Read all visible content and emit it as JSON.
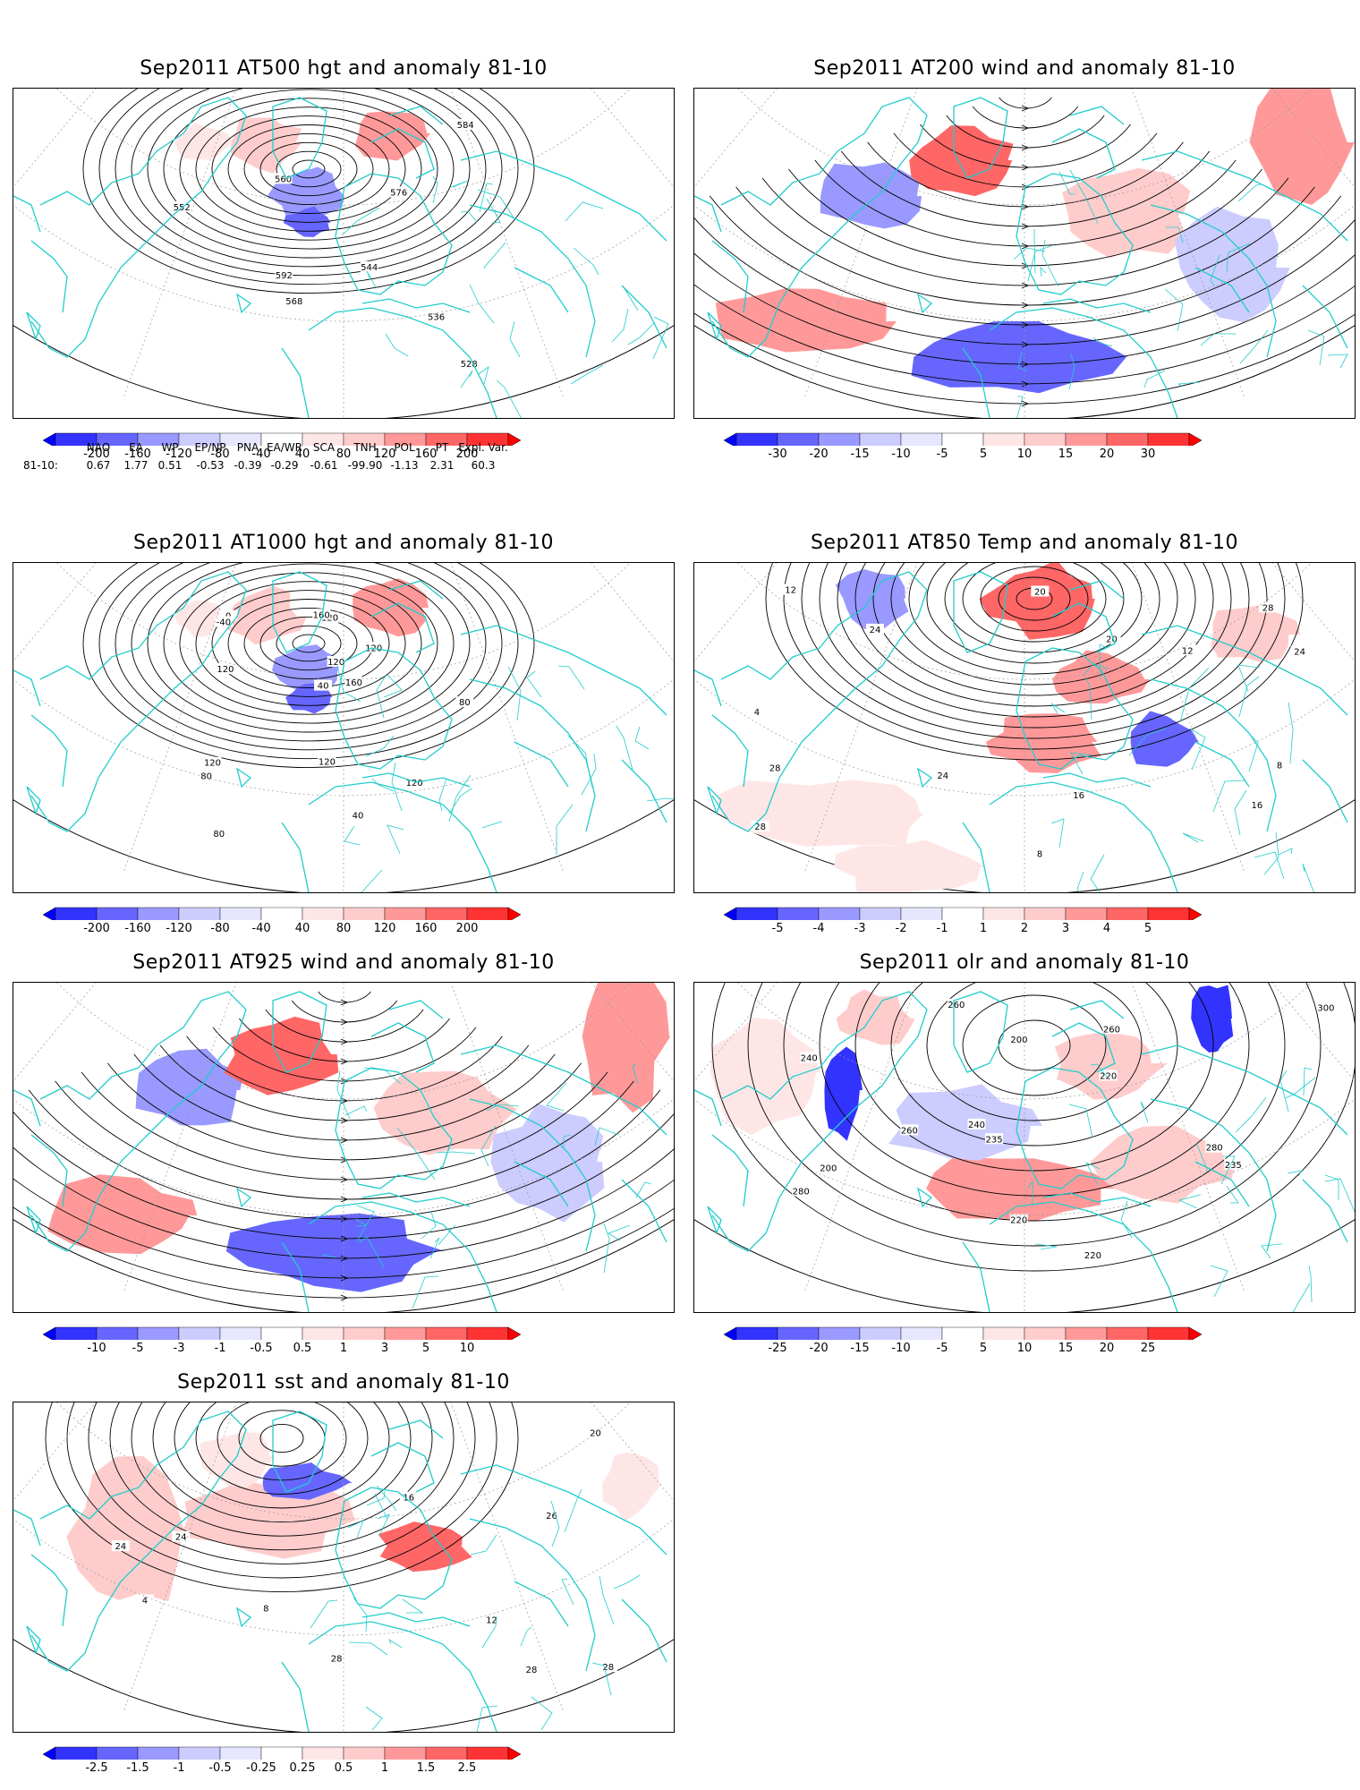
{
  "panels": [
    {
      "id": "p500",
      "title": "Sep2011 AT500 hgt and anomaly 81-10",
      "type": "height",
      "contour_labels": [
        "528",
        "536",
        "544",
        "552",
        "560",
        "568",
        "576",
        "584",
        "592"
      ],
      "colorbar": [
        "-200",
        "-160",
        "-120",
        "-80",
        "-40",
        "40",
        "80",
        "120",
        "160",
        "200"
      ]
    },
    {
      "id": "p200",
      "title": "Sep2011 AT200 wind and anomaly 81-10",
      "type": "wind",
      "contour_labels": [],
      "colorbar": [
        "-30",
        "-20",
        "-15",
        "-10",
        "-5",
        "5",
        "10",
        "15",
        "20",
        "30"
      ]
    },
    {
      "id": "p1000",
      "title": "Sep2011 AT1000 hgt and anomaly 81-10",
      "type": "height",
      "contour_labels": [
        "120",
        "40",
        "80",
        "0",
        "-40",
        "160",
        "120",
        "40",
        "80",
        "120",
        "80",
        "120",
        "160",
        "120",
        "120",
        "120"
      ],
      "colorbar": [
        "-200",
        "-160",
        "-120",
        "-80",
        "-40",
        "40",
        "80",
        "120",
        "160",
        "200"
      ]
    },
    {
      "id": "p850",
      "title": "Sep2011 AT850 Temp and anomaly 81-10",
      "type": "temp",
      "contour_labels": [
        "16",
        "12",
        "8",
        "4",
        "8",
        "12",
        "16",
        "20",
        "24",
        "28",
        "24",
        "20",
        "24",
        "28",
        "28"
      ],
      "colorbar": [
        "-5",
        "-4",
        "-3",
        "-2",
        "-1",
        "1",
        "2",
        "3",
        "4",
        "5"
      ]
    },
    {
      "id": "p925",
      "title": "Sep2011 AT925 wind and anomaly 81-10",
      "type": "wind",
      "contour_labels": [],
      "colorbar": [
        "-10",
        "-5",
        "-3",
        "-1",
        "-0.5",
        "0.5",
        "1",
        "3",
        "5",
        "10"
      ]
    },
    {
      "id": "polr",
      "title": "Sep2011 olr and anomaly 81-10",
      "type": "olr",
      "contour_labels": [
        "220",
        "200",
        "260",
        "280",
        "235",
        "220",
        "240",
        "260",
        "300",
        "280",
        "240",
        "200",
        "220",
        "235",
        "260"
      ],
      "colorbar": [
        "-25",
        "-20",
        "-15",
        "-10",
        "-5",
        "5",
        "10",
        "15",
        "20",
        "25"
      ]
    },
    {
      "id": "psst",
      "title": "Sep2011 sst and anomaly 81-10",
      "type": "sst",
      "contour_labels": [
        "28",
        "24",
        "20",
        "16",
        "12",
        "8",
        "4",
        "24",
        "28",
        "26",
        "28"
      ],
      "colorbar": [
        "-2.5",
        "-1.5",
        "-1",
        "-0.5",
        "-0.25",
        "0.25",
        "0.5",
        "1",
        "1.5",
        "2.5"
      ]
    }
  ],
  "teleconnections": {
    "row_label": "81-10:",
    "names": [
      "NAO",
      "EA",
      "WP",
      "EP/NP",
      "PNA",
      "EA/WR",
      "SCA",
      "TNH",
      "POL",
      "PT",
      "Expl. Var."
    ],
    "values": [
      "0.67",
      "1.77",
      "0.51",
      "-0.53",
      "-0.39",
      "-0.29",
      "-0.61",
      "-99.90",
      "-1.13",
      "2.31",
      "60.3"
    ]
  },
  "colors": {
    "coast": "#22cccc",
    "negative": [
      "#3333ff",
      "#6666ff",
      "#9999ff",
      "#ccccff",
      "#e6e6ff"
    ],
    "positive": [
      "#ffe6e6",
      "#ffcccc",
      "#ff9999",
      "#ff6666",
      "#ff3333"
    ]
  }
}
